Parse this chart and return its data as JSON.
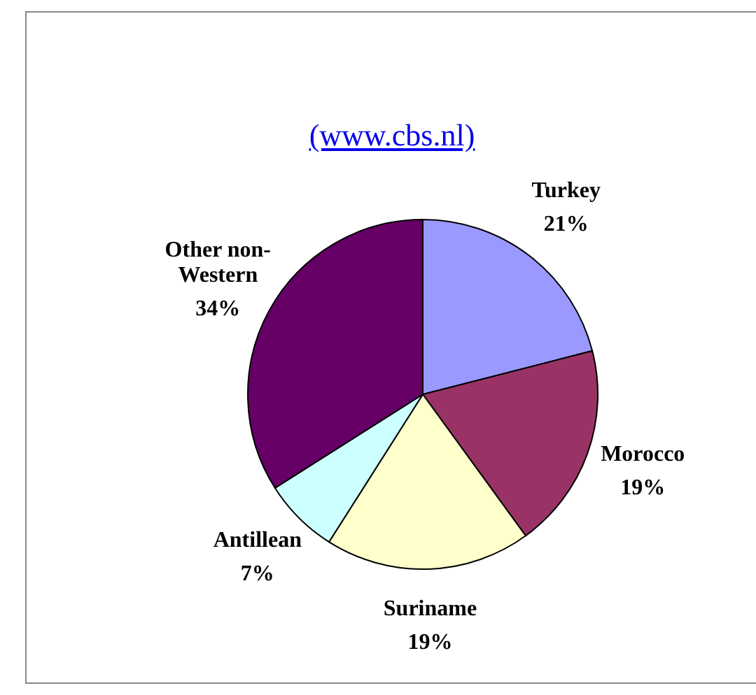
{
  "chart_data": {
    "type": "pie",
    "annotations": [
      "(www.cbs.nl)"
    ],
    "categories": [
      "Turkey",
      "Morocco",
      "Suriname",
      "Antillean",
      "Other non-Western"
    ],
    "values": [
      21,
      19,
      19,
      7,
      34
    ],
    "colors": [
      "#9999ff",
      "#993366",
      "#ffffcc",
      "#ccffff",
      "#660066"
    ],
    "value_labels": [
      "21%",
      "19%",
      "19%",
      "7%",
      "34%"
    ]
  }
}
